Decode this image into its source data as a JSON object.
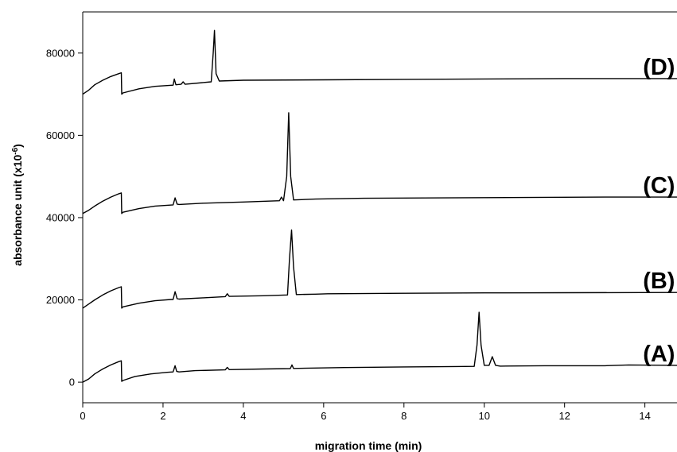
{
  "chart_data": {
    "type": "line",
    "title": "",
    "xlabel": "migration time (min)",
    "ylabel": "absorbance unit (x10",
    "ylabel_exp": "-6",
    "ylabel_close": ")",
    "xlim": [
      0,
      14.8
    ],
    "ylim": [
      -5000,
      90000
    ],
    "xticks": [
      0,
      2,
      4,
      6,
      8,
      10,
      12,
      14
    ],
    "yticks": [
      0,
      20000,
      40000,
      60000,
      80000
    ],
    "xtick_labels": [
      "0",
      "2",
      "4",
      "6",
      "8",
      "10",
      "12",
      "14"
    ],
    "ytick_labels": [
      "0",
      "20000",
      "40000",
      "60000",
      "80000"
    ],
    "grid": false,
    "legend": "none",
    "series": [
      {
        "name": "(A)",
        "color": "#000000",
        "x": [
          0,
          0.15,
          0.3,
          0.5,
          0.7,
          0.9,
          0.96,
          0.97,
          1.0,
          1.3,
          1.7,
          2.1,
          2.25,
          2.3,
          2.34,
          2.4,
          2.8,
          3.55,
          3.6,
          3.65,
          4.5,
          5.17,
          5.21,
          5.25,
          6.5,
          8.0,
          9.3,
          9.75,
          9.82,
          9.87,
          9.92,
          10.0,
          10.12,
          10.2,
          10.28,
          10.4,
          11.5,
          13.0,
          13.6,
          14.8
        ],
        "y": [
          0,
          800,
          2000,
          3200,
          4200,
          5000,
          5200,
          200,
          400,
          1400,
          2000,
          2400,
          2500,
          4000,
          2600,
          2500,
          2800,
          3000,
          3600,
          3050,
          3200,
          3300,
          4200,
          3350,
          3550,
          3700,
          3800,
          3850,
          9000,
          17000,
          9000,
          4100,
          4100,
          6200,
          4100,
          3900,
          4000,
          4000,
          4200,
          4100
        ]
      },
      {
        "name": "(B)",
        "color": "#000000",
        "x": [
          0,
          0.15,
          0.3,
          0.5,
          0.7,
          0.9,
          0.96,
          0.97,
          1.0,
          1.4,
          1.8,
          2.2,
          2.25,
          2.3,
          2.35,
          2.4,
          3.0,
          3.55,
          3.6,
          3.65,
          4.5,
          5.1,
          5.15,
          5.2,
          5.25,
          5.32,
          5.8,
          6.1,
          8.0,
          10.0,
          12.0,
          14.8
        ],
        "y": [
          18000,
          19000,
          20000,
          21200,
          22200,
          23000,
          23200,
          18000,
          18300,
          19200,
          19800,
          20100,
          20100,
          22000,
          20300,
          20200,
          20500,
          20800,
          21500,
          20850,
          21000,
          21200,
          30000,
          37000,
          28000,
          21300,
          21400,
          21500,
          21600,
          21700,
          21750,
          21800
        ]
      },
      {
        "name": "(C)",
        "color": "#000000",
        "x": [
          0,
          0.15,
          0.3,
          0.5,
          0.7,
          0.9,
          0.96,
          0.97,
          1.0,
          1.4,
          1.8,
          2.25,
          2.3,
          2.35,
          2.4,
          3.0,
          4.0,
          4.9,
          4.95,
          5.0,
          5.08,
          5.13,
          5.18,
          5.25,
          5.8,
          7.0,
          9.0,
          11.0,
          13.0,
          14.8
        ],
        "y": [
          41000,
          41800,
          42800,
          44000,
          45000,
          45800,
          46000,
          41000,
          41300,
          42200,
          42800,
          43100,
          44800,
          43300,
          43200,
          43500,
          43800,
          44100,
          45000,
          44100,
          50000,
          65500,
          50000,
          44300,
          44500,
          44700,
          44800,
          44900,
          45000,
          45000
        ]
      },
      {
        "name": "(D)",
        "color": "#000000",
        "x": [
          0,
          0.15,
          0.3,
          0.5,
          0.7,
          0.9,
          0.96,
          0.97,
          1.0,
          1.4,
          1.8,
          2.25,
          2.28,
          2.32,
          2.45,
          2.5,
          2.55,
          3.2,
          3.25,
          3.28,
          3.32,
          3.4,
          4.0,
          6.0,
          8.0,
          10.0,
          12.0,
          14.8
        ],
        "y": [
          70000,
          71000,
          72300,
          73400,
          74300,
          75000,
          75200,
          70000,
          70300,
          71300,
          71900,
          72200,
          73700,
          72300,
          72400,
          73000,
          72400,
          73000,
          80000,
          85500,
          75000,
          73200,
          73400,
          73500,
          73600,
          73700,
          73800,
          73800
        ]
      }
    ],
    "annotations": [
      {
        "text": "(A)",
        "x": 14.75,
        "y": 4100
      },
      {
        "text": "(B)",
        "x": 14.75,
        "y": 21800
      },
      {
        "text": "(C)",
        "x": 14.75,
        "y": 45000
      },
      {
        "text": "(D)",
        "x": 14.75,
        "y": 73800
      }
    ]
  }
}
